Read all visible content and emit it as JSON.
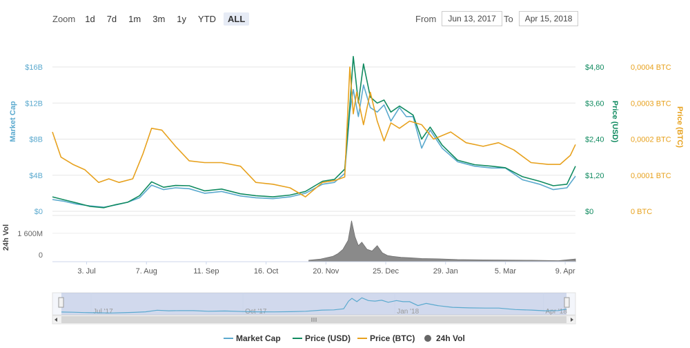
{
  "toolbar": {
    "zoom_label": "Zoom",
    "zoom_buttons": [
      "1d",
      "7d",
      "1m",
      "3m",
      "1y",
      "YTD",
      "ALL"
    ],
    "active_zoom": "ALL",
    "from_label": "From",
    "from_value": "Jun 13, 2017",
    "to_label": "To",
    "to_value": "Apr 15, 2018"
  },
  "chart_data": {
    "type": "line",
    "x_date_range": [
      "2017-06-13",
      "2018-04-15"
    ],
    "x_tick_labels": [
      "3. Jul",
      "7. Aug",
      "11. Sep",
      "16. Oct",
      "20. Nov",
      "25. Dec",
      "29. Jan",
      "5. Mar",
      "9. Apr"
    ],
    "axes": {
      "market_cap": {
        "label": "Market Cap",
        "ticks": [
          "$0",
          "$4B",
          "$8B",
          "$12B",
          "$16B"
        ],
        "range": [
          0,
          16000000000
        ],
        "color": "#5aa9ce"
      },
      "price_usd": {
        "label": "Price (USD)",
        "ticks": [
          "$0",
          "$1,20",
          "$2,40",
          "$3,60",
          "$4,80"
        ],
        "range": [
          0,
          4.8
        ],
        "color": "#0f8a5f"
      },
      "price_btc": {
        "label": "Price (BTC)",
        "ticks": [
          "0 BTC",
          "0,0001 BTC",
          "0,0002 BTC",
          "0,0003 BTC",
          "0,0004 BTC"
        ],
        "range": [
          0,
          0.0004
        ],
        "color": "#e7a11d"
      },
      "volume": {
        "label": "24h Vol",
        "ticks": [
          "0",
          "1 600M"
        ],
        "range": [
          0,
          2600000000
        ],
        "color": "#777777"
      }
    },
    "series": [
      {
        "name": "Market Cap",
        "color": "#5aa9ce",
        "dates": [
          "2017-06-13",
          "2017-06-20",
          "2017-06-27",
          "2017-07-05",
          "2017-07-13",
          "2017-07-20",
          "2017-07-27",
          "2017-08-03",
          "2017-08-10",
          "2017-08-17",
          "2017-08-24",
          "2017-09-01",
          "2017-09-10",
          "2017-09-20",
          "2017-10-01",
          "2017-10-10",
          "2017-10-20",
          "2017-10-30",
          "2017-11-08",
          "2017-11-18",
          "2017-11-25",
          "2017-12-01",
          "2017-12-04",
          "2017-12-06",
          "2017-12-09",
          "2017-12-12",
          "2017-12-16",
          "2017-12-20",
          "2017-12-24",
          "2017-12-28",
          "2018-01-02",
          "2018-01-06",
          "2018-01-10",
          "2018-01-15",
          "2018-01-20",
          "2018-01-27",
          "2018-02-05",
          "2018-02-15",
          "2018-02-25",
          "2018-03-05",
          "2018-03-15",
          "2018-03-25",
          "2018-04-02",
          "2018-04-10",
          "2018-04-15"
        ],
        "values": [
          1300000000.0,
          1100000000.0,
          800000000.0,
          600000000.0,
          450000000.0,
          700000000.0,
          1000000000.0,
          1500000000.0,
          2900000000.0,
          2400000000.0,
          2600000000.0,
          2500000000.0,
          2000000000.0,
          2200000000.0,
          1700000000.0,
          1500000000.0,
          1400000000.0,
          1600000000.0,
          2000000000.0,
          3000000000.0,
          3200000000.0,
          4200000000.0,
          11000000000.0,
          13500000000.0,
          10500000000.0,
          14000000000.0,
          11500000000.0,
          11000000000.0,
          11800000000.0,
          10000000000.0,
          11500000000.0,
          10500000000.0,
          10500000000.0,
          7000000000.0,
          9000000000.0,
          7000000000.0,
          5500000000.0,
          5000000000.0,
          4800000000.0,
          4800000000.0,
          3500000000.0,
          3000000000.0,
          2400000000.0,
          2600000000.0,
          3900000000.0
        ]
      },
      {
        "name": "Price (USD)",
        "color": "#0f8a5f",
        "dates": [
          "2017-06-13",
          "2017-06-20",
          "2017-06-27",
          "2017-07-05",
          "2017-07-13",
          "2017-07-20",
          "2017-07-27",
          "2017-08-03",
          "2017-08-10",
          "2017-08-17",
          "2017-08-24",
          "2017-09-01",
          "2017-09-10",
          "2017-09-20",
          "2017-10-01",
          "2017-10-10",
          "2017-10-20",
          "2017-10-30",
          "2017-11-08",
          "2017-11-18",
          "2017-11-25",
          "2017-12-01",
          "2017-12-04",
          "2017-12-06",
          "2017-12-09",
          "2017-12-12",
          "2017-12-16",
          "2017-12-20",
          "2017-12-24",
          "2017-12-28",
          "2018-01-02",
          "2018-01-06",
          "2018-01-10",
          "2018-01-15",
          "2018-01-20",
          "2018-01-27",
          "2018-02-05",
          "2018-02-15",
          "2018-02-25",
          "2018-03-05",
          "2018-03-15",
          "2018-03-25",
          "2018-04-02",
          "2018-04-10",
          "2018-04-15"
        ],
        "values": [
          0.48,
          0.38,
          0.28,
          0.16,
          0.12,
          0.22,
          0.3,
          0.52,
          0.98,
          0.8,
          0.86,
          0.85,
          0.68,
          0.74,
          0.58,
          0.52,
          0.48,
          0.54,
          0.66,
          1.0,
          1.06,
          1.4,
          3.5,
          5.15,
          3.6,
          4.9,
          3.8,
          3.6,
          3.7,
          3.3,
          3.5,
          3.35,
          3.2,
          2.4,
          2.8,
          2.2,
          1.7,
          1.55,
          1.5,
          1.45,
          1.15,
          1.0,
          0.85,
          0.9,
          1.5
        ]
      },
      {
        "name": "Price (BTC)",
        "color": "#e7a11d",
        "dates": [
          "2017-06-13",
          "2017-06-18",
          "2017-06-25",
          "2017-07-02",
          "2017-07-10",
          "2017-07-16",
          "2017-07-22",
          "2017-07-30",
          "2017-08-05",
          "2017-08-10",
          "2017-08-16",
          "2017-08-24",
          "2017-09-01",
          "2017-09-10",
          "2017-09-20",
          "2017-10-01",
          "2017-10-10",
          "2017-10-20",
          "2017-10-30",
          "2017-11-08",
          "2017-11-18",
          "2017-11-25",
          "2017-12-01",
          "2017-12-04",
          "2017-12-06",
          "2017-12-08",
          "2017-12-12",
          "2017-12-16",
          "2017-12-20",
          "2017-12-24",
          "2017-12-28",
          "2018-01-02",
          "2018-01-08",
          "2018-01-15",
          "2018-01-22",
          "2018-02-01",
          "2018-02-10",
          "2018-02-20",
          "2018-03-01",
          "2018-03-10",
          "2018-03-20",
          "2018-03-30",
          "2018-04-06",
          "2018-04-12",
          "2018-04-15"
        ],
        "values": [
          0.00022,
          0.00015,
          0.00013,
          0.000115,
          8e-05,
          9e-05,
          8e-05,
          9e-05,
          0.00016,
          0.00023,
          0.000225,
          0.00018,
          0.00014,
          0.000135,
          0.000135,
          0.000125,
          8e-05,
          7.5e-05,
          6.5e-05,
          4e-05,
          8e-05,
          8.5e-05,
          9.5e-05,
          0.0004,
          0.00027,
          0.00033,
          0.00024,
          0.00033,
          0.00025,
          0.000195,
          0.000245,
          0.00023,
          0.00025,
          0.00024,
          0.0002,
          0.00022,
          0.00019,
          0.00018,
          0.00019,
          0.00017,
          0.000135,
          0.00013,
          0.00013,
          0.000155,
          0.000185
        ]
      }
    ],
    "volume": {
      "name": "24h Vol",
      "dates": [
        "2017-11-10",
        "2017-11-17",
        "2017-11-24",
        "2017-11-27",
        "2017-11-30",
        "2017-12-03",
        "2017-12-05",
        "2017-12-07",
        "2017-12-09",
        "2017-12-11",
        "2017-12-14",
        "2017-12-17",
        "2017-12-20",
        "2017-12-23",
        "2017-12-26",
        "2017-12-29",
        "2018-01-03",
        "2018-01-08",
        "2018-01-15",
        "2018-01-25",
        "2018-02-05",
        "2018-02-20",
        "2018-03-05",
        "2018-03-20",
        "2018-04-05",
        "2018-04-15"
      ],
      "values": [
        80000000,
        150000000,
        300000000,
        450000000,
        700000000,
        1200000000,
        2300000000,
        1400000000,
        900000000,
        1100000000,
        700000000,
        600000000,
        900000000,
        500000000,
        350000000,
        300000000,
        250000000,
        220000000,
        180000000,
        160000000,
        120000000,
        100000000,
        90000000,
        80000000,
        60000000,
        150000000
      ]
    },
    "navigator": {
      "labels": [
        "Jul '17",
        "Oct '17",
        "Jan '18",
        "Apr '18"
      ]
    },
    "legend_position": "bottom-center"
  }
}
